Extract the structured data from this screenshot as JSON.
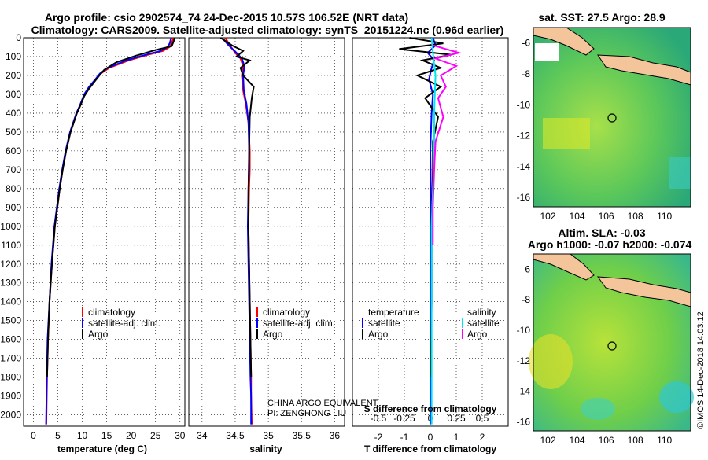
{
  "header": {
    "title1": "Argo profile: csio 2902574_74 24-Dec-2015 10.57S 106.52E (NRT data)",
    "title2": "Climatology: CARS2009. Satellite-adjusted climatology: synTS_20151224.nc (0.96d earlier)"
  },
  "colors": {
    "climatology": "#ff0000",
    "satellite": "#0000ff",
    "argo": "#000000",
    "sat_salinity": "#00e5ee",
    "argo_salinity": "#ff00ff"
  },
  "notes": {
    "line1": "CHINA ARGO EQUIVALENT",
    "line2": "PI: ZENGHONG LIU"
  },
  "side": {
    "sst_title": "sat. SST: 27.5 Argo: 28.9",
    "sla_title1": "Altim. SLA: -0.03",
    "sla_title2": "Argo h1000: -0.07 h2000: -0.074",
    "stamp": "©IMOS 14-Dec-2018 14:03:12",
    "lon_ticks": [
      "102",
      "104",
      "106",
      "108",
      "110"
    ],
    "lat_ticks": [
      "-6",
      "-8",
      "-10",
      "-12",
      "-14",
      "-16"
    ]
  },
  "chart_data": [
    {
      "type": "line",
      "xlabel": "temperature (deg C)",
      "xlim": [
        -2,
        31
      ],
      "xticks": [
        "0",
        "5",
        "10",
        "15",
        "20",
        "25",
        "30"
      ],
      "ylim": [
        2060,
        0
      ],
      "yticks": [
        "0",
        "100",
        "200",
        "300",
        "400",
        "500",
        "600",
        "700",
        "800",
        "900",
        "1000",
        "1100",
        "1200",
        "1300",
        "1400",
        "1500",
        "1600",
        "1700",
        "1800",
        "1900",
        "2000"
      ],
      "legend": [
        "climatology",
        "satellite-adj. clim.",
        "Argo"
      ],
      "grid": true,
      "series": [
        {
          "name": "climatology",
          "color": "#ff0000",
          "x": [
            28.6,
            28.3,
            27.8,
            26.5,
            23.5,
            19.5,
            15.5,
            13.8,
            12.8,
            11.5,
            10.5,
            9.6,
            8.9,
            7.6,
            6.7,
            6.0,
            5.4,
            4.9,
            4.4,
            3.8,
            3.3,
            3.0,
            2.8,
            2.65
          ],
          "y": [
            0,
            30,
            50,
            70,
            90,
            120,
            160,
            190,
            220,
            260,
            300,
            360,
            400,
            500,
            600,
            700,
            800,
            900,
            1000,
            1200,
            1400,
            1600,
            1800,
            2050
          ]
        },
        {
          "name": "satellite-adj. clim.",
          "color": "#0000ff",
          "x": [
            28.2,
            27.9,
            27.4,
            26.0,
            23.0,
            19.0,
            15.2,
            13.6,
            12.7,
            11.4,
            10.4,
            9.5,
            8.8,
            7.5,
            6.6,
            5.9,
            5.3,
            4.8,
            4.3,
            3.7,
            3.3,
            2.9,
            2.75,
            2.6
          ],
          "y": [
            0,
            30,
            50,
            70,
            90,
            120,
            160,
            190,
            220,
            260,
            300,
            360,
            400,
            500,
            600,
            700,
            800,
            900,
            1000,
            1200,
            1400,
            1600,
            1800,
            2050
          ]
        },
        {
          "name": "Argo",
          "color": "#000000",
          "x": [
            28.9,
            28.7,
            28.3,
            25.0,
            21.0,
            17.0,
            14.5,
            13.5,
            12.6,
            11.4,
            10.4,
            9.6,
            8.9,
            7.6,
            6.7,
            6.0,
            5.4,
            4.9,
            4.4,
            3.8,
            3.3,
            3.0,
            2.8
          ],
          "y": [
            0,
            20,
            45,
            65,
            95,
            130,
            170,
            200,
            230,
            270,
            310,
            360,
            400,
            500,
            600,
            700,
            800,
            900,
            1000,
            1200,
            1400,
            1600,
            1800
          ]
        }
      ]
    },
    {
      "type": "line",
      "xlabel": "salinity",
      "xlim": [
        33.8,
        36.15
      ],
      "xticks": [
        "34",
        "34.5",
        "35",
        "35.5",
        "36"
      ],
      "ylim": [
        2060,
        0
      ],
      "legend": [
        "climatology",
        "satellite-adj. clim.",
        "Argo"
      ],
      "grid": true,
      "series": [
        {
          "name": "climatology",
          "color": "#ff0000",
          "x": [
            34.35,
            34.42,
            34.5,
            34.58,
            34.62,
            34.6,
            34.62,
            34.66,
            34.7,
            34.72,
            34.72,
            34.71,
            34.7,
            34.71,
            34.72,
            34.73,
            34.74,
            34.74,
            34.75
          ],
          "y": [
            0,
            40,
            80,
            110,
            150,
            200,
            280,
            350,
            450,
            600,
            700,
            800,
            1000,
            1200,
            1400,
            1600,
            1800,
            1900,
            2050
          ]
        },
        {
          "name": "satellite-adj. clim.",
          "color": "#0000ff",
          "x": [
            34.3,
            34.4,
            34.52,
            34.6,
            34.64,
            34.62,
            34.63,
            34.67,
            34.7,
            34.71,
            34.71,
            34.7,
            34.69,
            34.7,
            34.71,
            34.72,
            34.73,
            34.74,
            34.74
          ],
          "y": [
            0,
            40,
            80,
            110,
            150,
            200,
            280,
            350,
            450,
            600,
            700,
            800,
            1000,
            1200,
            1400,
            1600,
            1800,
            1900,
            2050
          ]
        },
        {
          "name": "Argo",
          "color": "#000000",
          "x": [
            34.28,
            34.45,
            34.62,
            34.52,
            34.72,
            34.58,
            34.62,
            34.78,
            34.75,
            34.72,
            34.71,
            34.7,
            34.7,
            34.71,
            34.72,
            34.73,
            34.74
          ],
          "y": [
            0,
            40,
            70,
            100,
            120,
            160,
            200,
            260,
            320,
            420,
            600,
            800,
            1000,
            1200,
            1400,
            1600,
            1800
          ]
        }
      ]
    },
    {
      "type": "line",
      "xlabel": "T difference from climatology",
      "xlabel2": "S difference from climatology",
      "xlim": [
        -3,
        3
      ],
      "xticks": [
        "-2",
        "-1",
        "0",
        "1",
        "2"
      ],
      "xticks2": [
        "-0.5",
        "-0.25",
        "0",
        "0.25",
        "0.5"
      ],
      "ylim": [
        2060,
        0
      ],
      "legend_t": [
        "temperature",
        "satellite",
        "Argo"
      ],
      "legend_s": [
        "salinity",
        "satellite",
        "Argo"
      ],
      "grid": true,
      "series": [
        {
          "name": "satellite",
          "color": "#0000ff",
          "x": [
            0.1,
            0.2,
            -0.1,
            0.15,
            0.05,
            -0.05,
            0.1,
            0.05,
            0,
            0.02,
            0,
            0,
            0
          ],
          "y": [
            0,
            40,
            80,
            120,
            160,
            220,
            300,
            400,
            600,
            800,
            1000,
            1500,
            2050
          ]
        },
        {
          "name": "Argo",
          "color": "#000000",
          "x": [
            -0.8,
            0.5,
            -1.2,
            0.8,
            -0.3,
            0.4,
            -0.5,
            0.4,
            -0.2,
            0.3,
            0.1,
            0.1,
            0.05,
            0.05,
            0.02
          ],
          "y": [
            0,
            30,
            60,
            90,
            120,
            160,
            200,
            260,
            320,
            420,
            550,
            700,
            1000,
            1400,
            1800
          ]
        },
        {
          "name": "satellite",
          "color": "#00e5ee",
          "x": [
            0.05,
            0.1,
            0.2,
            0.15,
            0.15,
            0.1,
            0.05,
            0.05,
            0.05
          ],
          "y": [
            0,
            80,
            200,
            400,
            600,
            800,
            1000,
            1500,
            2050
          ]
        },
        {
          "name": "Argo",
          "color": "#ff00ff",
          "x": [
            0.1,
            1.1,
            0.2,
            1.0,
            0.4,
            0.6,
            0.3,
            0.5,
            0.2,
            0.15,
            0.1,
            0.1
          ],
          "y": [
            40,
            80,
            110,
            150,
            200,
            260,
            320,
            420,
            550,
            700,
            900,
            1100
          ]
        }
      ]
    }
  ]
}
